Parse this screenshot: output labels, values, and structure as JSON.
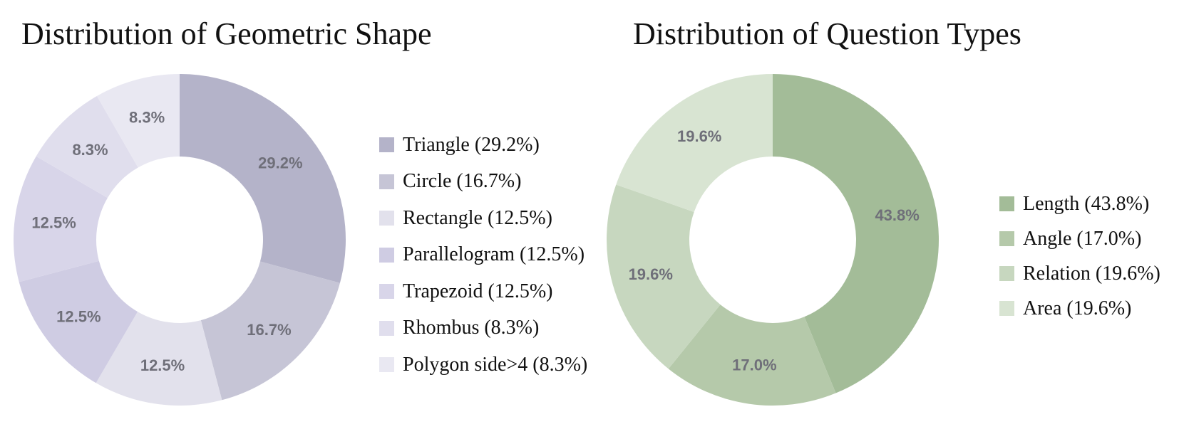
{
  "chart_data": [
    {
      "type": "pie",
      "title": "Distribution of Geometric Shape",
      "categories": [
        "Triangle",
        "Circle",
        "Rectangle",
        "Parallelogram",
        "Trapezoid",
        "Rhombus",
        "Polygon side>4"
      ],
      "values": [
        29.2,
        16.7,
        12.5,
        12.5,
        12.5,
        8.3,
        8.3
      ],
      "slice_labels": [
        "29.2%",
        "16.7%",
        "12.5%",
        "12.5%",
        "12.5%",
        "8.3%",
        "8.3%"
      ],
      "legend_entries": [
        "Triangle (29.2%)",
        "Circle (16.7%)",
        "Rectangle (12.5%)",
        "Parallelogram (12.5%)",
        "Trapezoid (12.5%)",
        "Rhombus (8.3%)",
        "Polygon side>4 (8.3%)"
      ],
      "colors": [
        "#b4b3c9",
        "#c6c5d6",
        "#e2e1ec",
        "#cfcce3",
        "#d8d5e9",
        "#e0deed",
        "#e9e8f2"
      ],
      "donut": true,
      "legend": "right"
    },
    {
      "type": "pie",
      "title": "Distribution of Question Types",
      "categories": [
        "Length",
        "Angle",
        "Relation",
        "Area"
      ],
      "values": [
        43.8,
        17.0,
        19.6,
        19.6
      ],
      "slice_labels": [
        "43.8%",
        "17.0%",
        "19.6%",
        "19.6%"
      ],
      "legend_entries": [
        "Length (43.8%)",
        "Angle (17.0%)",
        "Relation (19.6%)",
        "Area (19.6%)"
      ],
      "colors": [
        "#a3bc98",
        "#b5c9aa",
        "#c7d7bf",
        "#d8e4d2"
      ],
      "donut": true,
      "legend": "right"
    }
  ]
}
